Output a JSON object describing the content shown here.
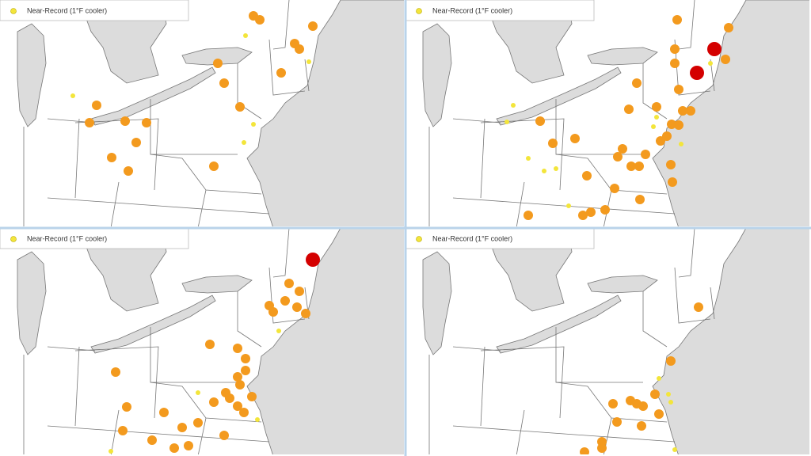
{
  "panels": [
    {
      "legend": "Near-Record (1°F cooler)"
    },
    {
      "legend": "Near-Record (1°F cooler)"
    },
    {
      "legend": "Near-Record (1°F cooler)"
    },
    {
      "legend": "Near-Record (1°F cooler)"
    }
  ]
}
